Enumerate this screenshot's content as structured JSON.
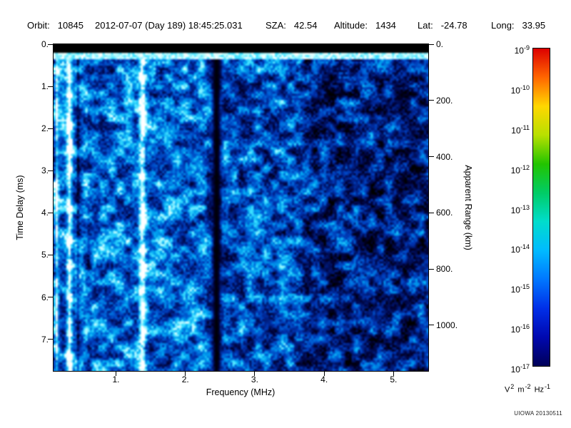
{
  "header": {
    "items": [
      {
        "label": "Orbit:",
        "value": "10845"
      },
      {
        "label": "",
        "value": "2012-07-07 (Day 189) 18:45:25.031"
      },
      {
        "label": "SZA:",
        "value": "42.54"
      },
      {
        "label": "Altitude:",
        "value": "1434"
      },
      {
        "label": "Lat:",
        "value": "-24.78"
      },
      {
        "label": "Long:",
        "value": "33.95"
      }
    ]
  },
  "watermark": "UIOWA 20130511",
  "chart_data": {
    "type": "heatmap",
    "description": "Radar sounder ionogram: received spectral density versus sounding frequency and echo time delay",
    "xlabel": "Frequency (MHz)",
    "ylabel_left": "Time Delay (ms)",
    "ylabel_right": "Apparent Range (km)",
    "x_range_mhz": [
      0.1,
      5.5
    ],
    "x_ticks": [
      1,
      2,
      3,
      4,
      5
    ],
    "x_tick_labels": [
      "1.",
      "2.",
      "3.",
      "4.",
      "5."
    ],
    "y_range_ms": [
      0,
      7.75
    ],
    "y_ticks": [
      0,
      1,
      2,
      3,
      4,
      5,
      6,
      7
    ],
    "y_tick_labels": [
      "0.",
      "1.",
      "2.",
      "3.",
      "4.",
      "5.",
      "6.",
      "7."
    ],
    "right_axis_ticks_km": [
      0,
      200,
      400,
      600,
      800,
      1000
    ],
    "right_axis_tick_labels": [
      "0.",
      "200.",
      "400.",
      "600.",
      "800.",
      "1000."
    ],
    "km_per_ms": 150,
    "grid": false,
    "colorbar": {
      "scale": "log10",
      "top_value": "1e-9",
      "bottom_value": "1e-17",
      "tick_exponents": [
        "-9",
        "-10",
        "-11",
        "-12",
        "-13",
        "-14",
        "-15",
        "-16",
        "-17"
      ],
      "unit_parts": [
        {
          "base": "V",
          "exp": "2"
        },
        {
          "base": "m",
          "exp": "-2"
        },
        {
          "base": "Hz",
          "exp": "-1"
        }
      ],
      "gradient_top_to_bottom": [
        "#dd0000",
        "#ff6600",
        "#ffd700",
        "#b8e000",
        "#22c400",
        "#00cc66",
        "#00ddcc",
        "#00bbff",
        "#0077ff",
        "#002fe8",
        "#0008b0",
        "#000058"
      ]
    },
    "heatmap_render": {
      "seed": 20130511,
      "colormap_stops": [
        [
          0.0,
          "#000000"
        ],
        [
          0.14,
          "#000030"
        ],
        [
          0.28,
          "#001468"
        ],
        [
          0.42,
          "#0034b0"
        ],
        [
          0.55,
          "#0064d8"
        ],
        [
          0.68,
          "#00a2f0"
        ],
        [
          0.8,
          "#38dcff"
        ],
        [
          0.9,
          "#a8f6ff"
        ],
        [
          1.0,
          "#ffffff"
        ]
      ],
      "top_black_band_ms": 0.2,
      "surface_line_ms": [
        0.2,
        0.34
      ],
      "stripes_mhz": [
        {
          "f": 0.15,
          "w": 0.022,
          "amp": 0.32
        },
        {
          "f": 0.33,
          "w": 0.038,
          "amp": 0.52
        },
        {
          "f": 0.46,
          "w": 0.02,
          "amp": -0.25
        },
        {
          "f": 0.62,
          "w": 0.02,
          "amp": -0.15
        },
        {
          "f": 1.38,
          "w": 0.045,
          "amp": 0.48
        }
      ],
      "dark_band_mhz": {
        "f": 2.45,
        "w": 0.06,
        "depth": 0.96
      },
      "fade_above_mhz": 3.4
    }
  }
}
